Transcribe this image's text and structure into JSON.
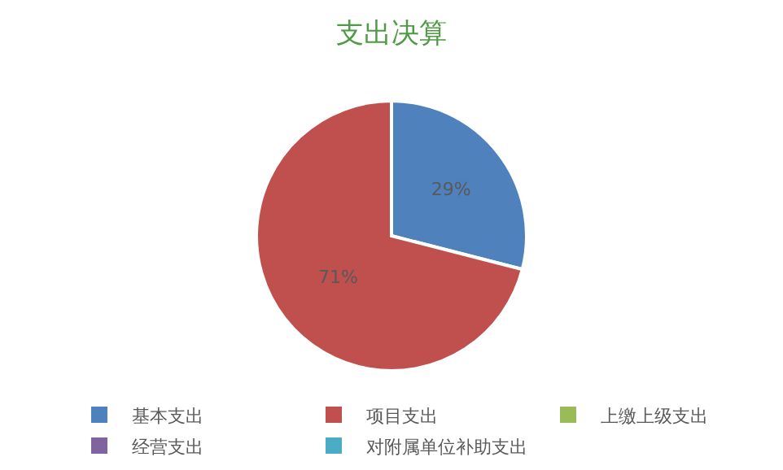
{
  "chart_data": {
    "type": "pie",
    "title": "支出决算",
    "categories": [
      "基本支出",
      "项目支出",
      "上缴上级支出",
      "经营支出",
      "对附属单位补助支出"
    ],
    "values": [
      29,
      71,
      0,
      0,
      0
    ],
    "value_labels": [
      "29%",
      "71%",
      null,
      null,
      null
    ],
    "colors": [
      "#4f81bd",
      "#c0504d",
      "#9bbb59",
      "#8064a2",
      "#4bacc6"
    ],
    "legend": "bottom"
  }
}
